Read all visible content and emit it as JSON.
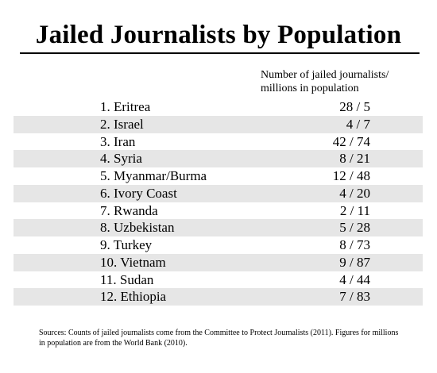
{
  "title": "Jailed Journalists by Population",
  "column_header": {
    "line1": "Number of jailed journalists/",
    "line2": "millions in population"
  },
  "sources": "Sources: Counts of jailed journalists come from the Committee to Protect Journalists (2011). Figures for millions in population are from the World Bank (2010).",
  "chart_data": {
    "type": "table",
    "title": "Jailed Journalists by Population",
    "columns": [
      "",
      "Number of jailed journalists/ millions in population"
    ],
    "rows": [
      {
        "rank_name": "1. Eritrea",
        "value": "28 / 5",
        "jailed": 28,
        "population_millions": 5
      },
      {
        "rank_name": "2. Israel",
        "value": "4 / 7",
        "jailed": 4,
        "population_millions": 7
      },
      {
        "rank_name": "3. Iran",
        "value": "42 / 74",
        "jailed": 42,
        "population_millions": 74
      },
      {
        "rank_name": "4. Syria",
        "value": "8 / 21",
        "jailed": 8,
        "population_millions": 21
      },
      {
        "rank_name": "5. Myanmar/Burma",
        "value": "12 / 48",
        "jailed": 12,
        "population_millions": 48
      },
      {
        "rank_name": "6. Ivory Coast",
        "value": "4 / 20",
        "jailed": 4,
        "population_millions": 20
      },
      {
        "rank_name": "7. Rwanda",
        "value": "2 / 11",
        "jailed": 2,
        "population_millions": 11
      },
      {
        "rank_name": "8. Uzbekistan",
        "value": "5 / 28",
        "jailed": 5,
        "population_millions": 28
      },
      {
        "rank_name": "9. Turkey",
        "value": "8 / 73",
        "jailed": 8,
        "population_millions": 73
      },
      {
        "rank_name": "10. Vietnam",
        "value": "9 / 87",
        "jailed": 9,
        "population_millions": 87
      },
      {
        "rank_name": "11. Sudan",
        "value": "4 / 44",
        "jailed": 4,
        "population_millions": 44
      },
      {
        "rank_name": "12. Ethiopia",
        "value": "7 / 83",
        "jailed": 7,
        "population_millions": 83
      }
    ],
    "row_shading": "alternating",
    "shade_color": "#e6e6e6"
  }
}
